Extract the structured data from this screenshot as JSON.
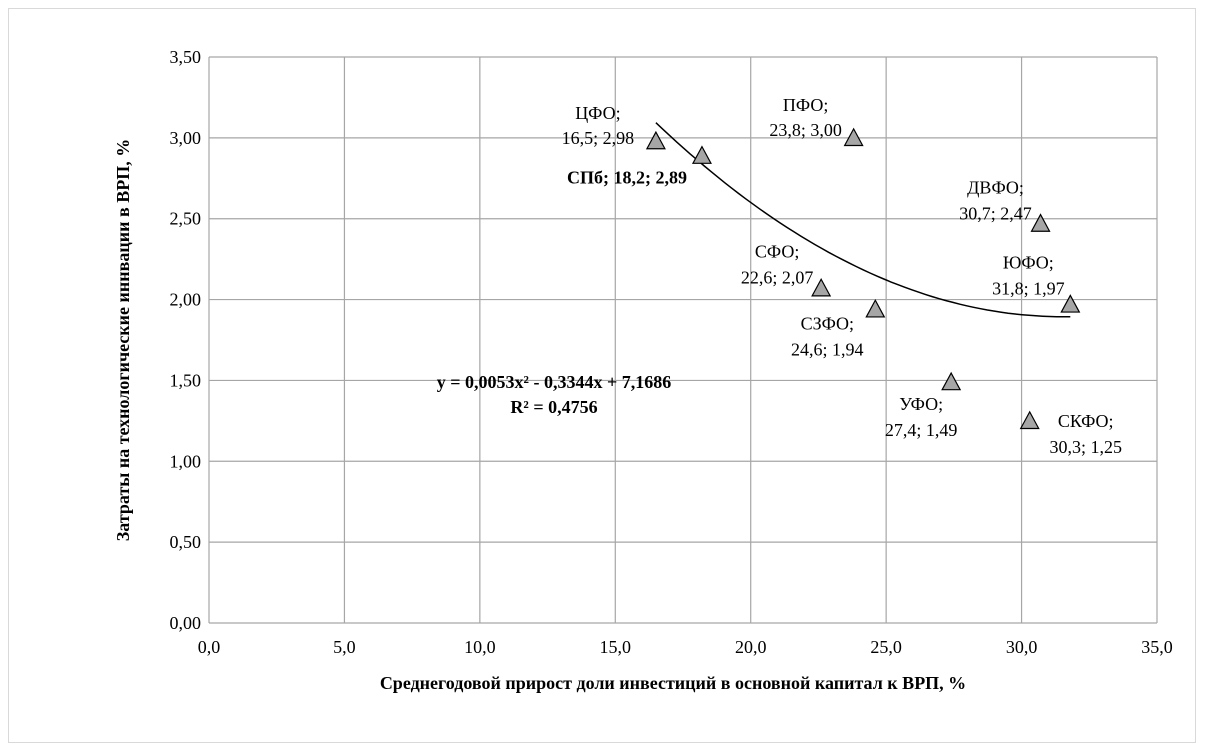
{
  "chart_data": {
    "type": "scatter",
    "xlabel": "Среднегодовой прирост доли  инвестиций в основной капитал к ВРП, %",
    "ylabel": "Затраты на технологические иннвации в ВРП, %",
    "xlim": [
      0,
      35
    ],
    "ylim": [
      0,
      3.5
    ],
    "x_ticks": [
      "0,0",
      "5,0",
      "10,0",
      "15,0",
      "20,0",
      "25,0",
      "30,0",
      "35,0"
    ],
    "y_ticks": [
      "0,00",
      "0,50",
      "1,00",
      "1,50",
      "2,00",
      "2,50",
      "3,00",
      "3,50"
    ],
    "grid": true,
    "marker": "triangle",
    "marker_color": "#a6a6a6",
    "points": [
      {
        "name": "ЦФО",
        "x": 16.5,
        "y": 2.98,
        "label_lines": [
          "ЦФО;",
          "16,5; 2,98"
        ],
        "bold": false
      },
      {
        "name": "СПб",
        "x": 18.2,
        "y": 2.89,
        "label_lines": [
          "СПб; 18,2; 2,89"
        ],
        "bold": true
      },
      {
        "name": "ПФО",
        "x": 23.8,
        "y": 3.0,
        "label_lines": [
          "ПФО;",
          "23,8; 3,00"
        ],
        "bold": false
      },
      {
        "name": "ДВФО",
        "x": 30.7,
        "y": 2.47,
        "label_lines": [
          "ДВФО;",
          "30,7; 2,47"
        ],
        "bold": false
      },
      {
        "name": "СФО",
        "x": 22.6,
        "y": 2.07,
        "label_lines": [
          "СФО;",
          "22,6; 2,07"
        ],
        "bold": false
      },
      {
        "name": "ЮФО",
        "x": 31.8,
        "y": 1.97,
        "label_lines": [
          "ЮФО;",
          "31,8; 1,97"
        ],
        "bold": false
      },
      {
        "name": "СЗФО",
        "x": 24.6,
        "y": 1.94,
        "label_lines": [
          "СЗФО;",
          "24,6; 1,94"
        ],
        "bold": false
      },
      {
        "name": "УФО",
        "x": 27.4,
        "y": 1.49,
        "label_lines": [
          "УФО;",
          "27,4; 1,49"
        ],
        "bold": false
      },
      {
        "name": "СКФО",
        "x": 30.3,
        "y": 1.25,
        "label_lines": [
          "СКФО;",
          "30,3; 1,25"
        ],
        "bold": false
      }
    ],
    "trendline": {
      "type": "polynomial",
      "coefficients": [
        0.0053,
        -0.3344,
        7.1686
      ],
      "x_range": [
        16.5,
        31.8
      ],
      "equation_text": "y = 0,0053x² - 0,3344x + 7,1686",
      "r2_text": "R² = 0,4756"
    }
  }
}
